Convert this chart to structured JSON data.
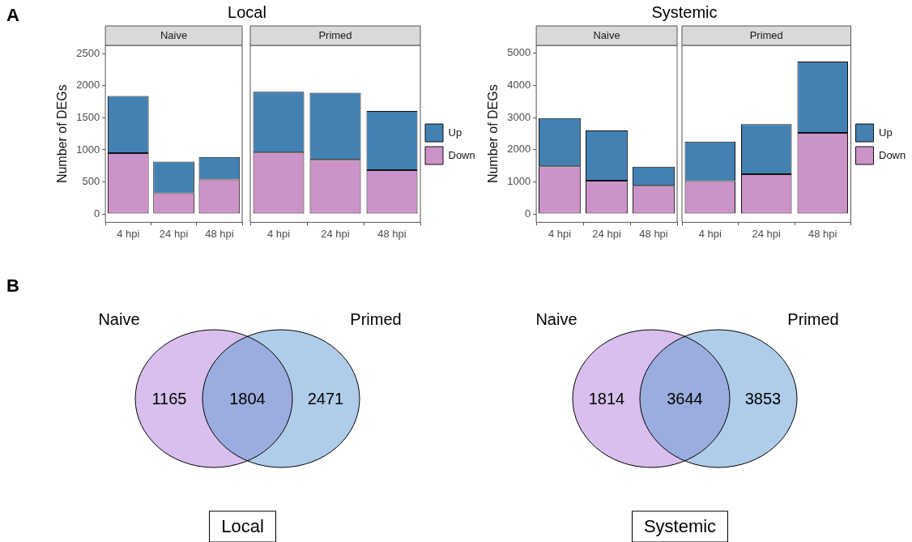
{
  "chart_data": [
    {
      "type": "bar",
      "title": "Local",
      "subtitle": "Naive",
      "annotations": [
        "A"
      ],
      "ylabel": "Number of DEGs",
      "categories": [
        "4 hpi",
        "24 hpi",
        "48 hpi"
      ],
      "stacked": true,
      "ylim": [
        -130,
        2630
      ],
      "yticks": [
        0,
        500,
        1000,
        1500,
        2000,
        2500
      ],
      "series": [
        {
          "color": "#cc93c8",
          "values": [
            950,
            325,
            540
          ]
        },
        {
          "color": "#4381b3",
          "values": [
            890,
            490,
            350
          ]
        }
      ]
    },
    {
      "type": "bar",
      "subtitle": "Primed",
      "categories": [
        "4 hpi",
        "24 hpi",
        "48 hpi"
      ],
      "stacked": true,
      "ylim": [
        -130,
        2630
      ],
      "yticks": [
        0,
        500,
        1000,
        1500,
        2000,
        2500
      ],
      "tick_labels": "x",
      "legend": "right",
      "series": [
        {
          "name": "Down",
          "color": "#cc93c8",
          "values": [
            960,
            845,
            685
          ]
        },
        {
          "name": "Up",
          "color": "#4381b3",
          "values": [
            945,
            1045,
            920
          ]
        }
      ]
    },
    {
      "type": "bar",
      "title": "Systemic",
      "subtitle": "Naive",
      "ylabel": "Number of DEGs",
      "categories": [
        "4 hpi",
        "24 hpi",
        "48 hpi"
      ],
      "stacked": true,
      "ylim": [
        -260,
        5250
      ],
      "yticks": [
        0,
        1000,
        2000,
        3000,
        4000,
        5000
      ],
      "series": [
        {
          "color": "#cc93c8",
          "values": [
            1485,
            1035,
            880
          ]
        },
        {
          "color": "#4381b3",
          "values": [
            1500,
            1565,
            595
          ]
        }
      ]
    },
    {
      "type": "bar",
      "subtitle": "Primed",
      "categories": [
        "4 hpi",
        "24 hpi",
        "48 hpi"
      ],
      "stacked": true,
      "ylim": [
        -260,
        5250
      ],
      "yticks": [
        0,
        1000,
        2000,
        3000,
        4000,
        5000
      ],
      "tick_labels": "x",
      "legend": "right",
      "series": [
        {
          "name": "Down",
          "color": "#cc93c8",
          "values": [
            1025,
            1240,
            2525
          ]
        },
        {
          "name": "Up",
          "color": "#4381b3",
          "values": [
            1230,
            1555,
            2220
          ]
        }
      ]
    },
    {
      "type": "other",
      "annotations": [
        "B",
        "Naive",
        "Primed"
      ],
      "xlabel": "Local",
      "data_labels": true,
      "categories": [
        null,
        null,
        null
      ],
      "values": [
        1165,
        1804,
        2471
      ],
      "colors": [
        "#d8bfed",
        "#9badde",
        "#afcdea"
      ]
    },
    {
      "type": "other",
      "annotations": [
        "Naive",
        "Primed"
      ],
      "xlabel": "Systemic",
      "data_labels": true,
      "categories": [
        null,
        null,
        null
      ],
      "values": [
        1814,
        3644,
        3853
      ],
      "colors": [
        "#d8bfed",
        "#9badde",
        "#afcdea"
      ]
    }
  ]
}
